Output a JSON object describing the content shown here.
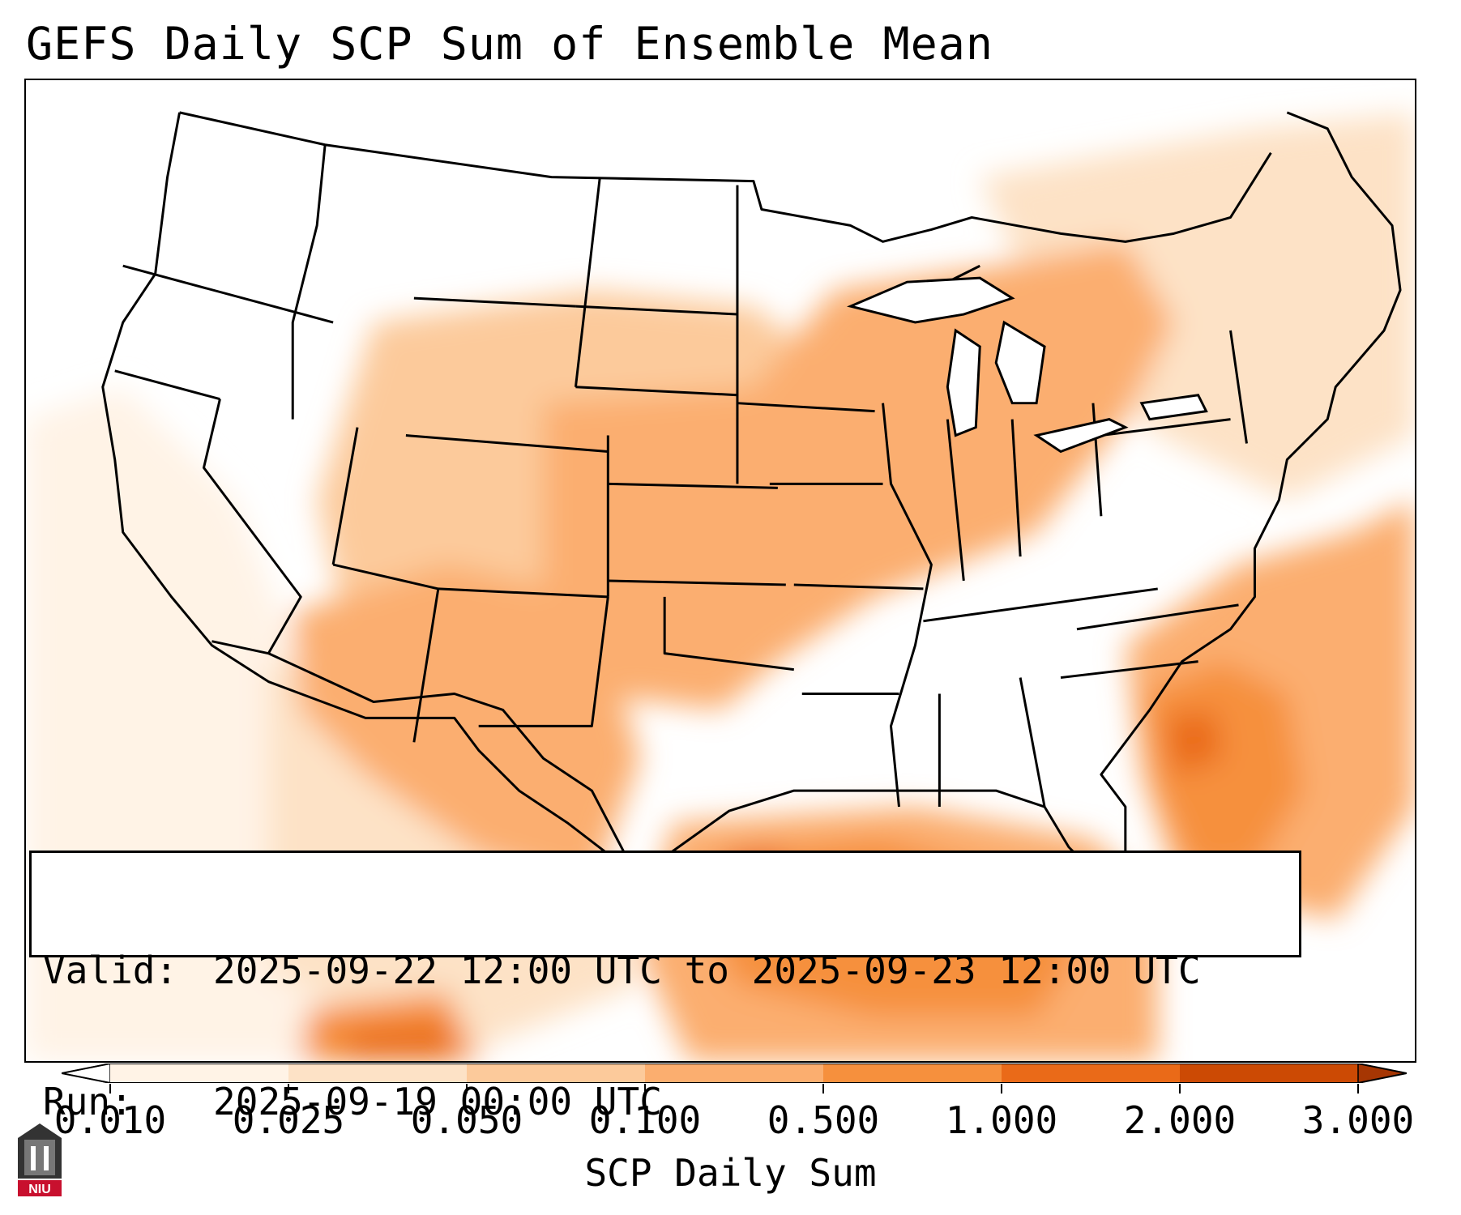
{
  "title": "GEFS Daily SCP Sum of Ensemble Mean",
  "info": {
    "valid_label": "Valid:",
    "valid_value": "2025-09-22 12:00 UTC to 2025-09-23 12:00 UTC",
    "run_label": "Run:",
    "run_value": "2025-09-19 00:00 UTC"
  },
  "colorbar": {
    "label": "SCP Daily Sum",
    "ticks": [
      "0.010",
      "0.025",
      "0.050",
      "0.100",
      "0.500",
      "1.000",
      "2.000",
      "3.000"
    ],
    "colors": [
      "#fff3e6",
      "#fde2c6",
      "#fcca9b",
      "#fbae6f",
      "#f6903d",
      "#ea6a18",
      "#cc4a04"
    ],
    "under_color": "#ffffff",
    "over_color": "#a63603",
    "extend": "both"
  },
  "map": {
    "domain": "Continental United States",
    "field": "SCP daily sum"
  },
  "logo": {
    "text": "NIU"
  }
}
